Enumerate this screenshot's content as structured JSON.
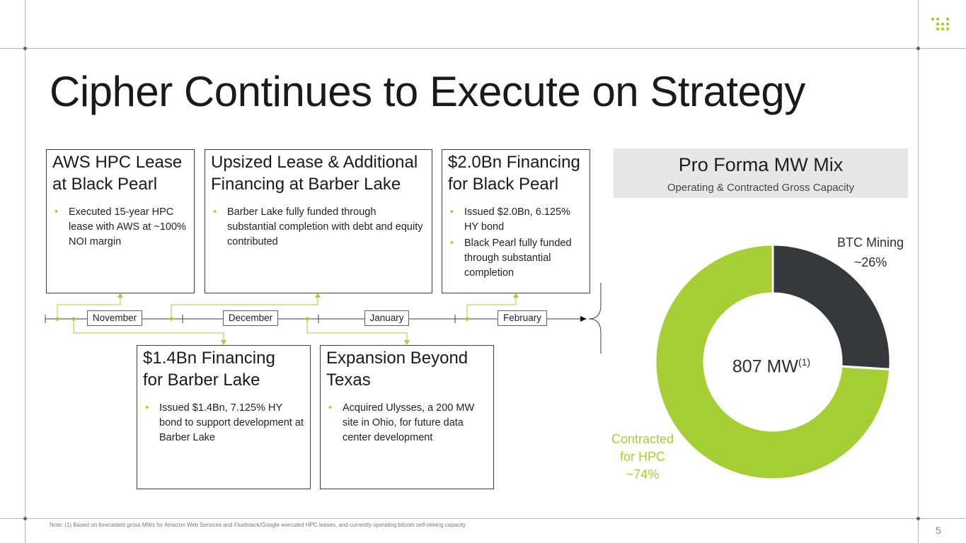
{
  "title": "Cipher Continues to Execute on Strategy",
  "cards_top": [
    {
      "title_l1": "AWS HPC Lease",
      "title_l2": "at Black Pearl",
      "bullets": [
        "Executed 15-year HPC lease with AWS at ~100% NOI margin"
      ]
    },
    {
      "title_l1": "Upsized Lease & Additional",
      "title_l2": "Financing at Barber Lake",
      "bullets": [
        "Barber Lake fully funded through substantial completion with debt and equity contributed"
      ]
    },
    {
      "title_l1": "$2.0Bn Financing",
      "title_l2": "for Black Pearl",
      "bullets": [
        "Issued $2.0Bn, 6.125% HY bond",
        "Black Pearl fully funded through substantial completion"
      ]
    }
  ],
  "cards_bottom": [
    {
      "title_l1": "$1.4Bn Financing",
      "title_l2": "for Barber Lake",
      "bullets": [
        "Issued $1.4Bn, 7.125% HY bond to support development at Barber Lake"
      ]
    },
    {
      "title_l1": "Expansion Beyond",
      "title_l2": "Texas",
      "bullets": [
        "Acquired Ulysses, a 200 MW site in Ohio, for future data center development"
      ]
    }
  ],
  "timeline": {
    "months": [
      "November",
      "December",
      "January",
      "February"
    ]
  },
  "mw_mix": {
    "title": "Pro Forma MW Mix",
    "subtitle": "Operating & Contracted Gross Capacity",
    "center_value": "807 MW",
    "center_sup": "(1)",
    "btc_label": "BTC Mining",
    "btc_pct": "~26%",
    "hpc_label_l1": "Contracted",
    "hpc_label_l2": "for HPC",
    "hpc_pct": "~74%"
  },
  "chart_data": {
    "type": "pie",
    "title": "Pro Forma MW Mix",
    "subtitle": "Operating & Contracted Gross Capacity",
    "center_label": "807 MW(1)",
    "categories": [
      "BTC Mining",
      "Contracted for HPC"
    ],
    "values": [
      26,
      74
    ],
    "colors": [
      "#35393e",
      "#a6cf37"
    ]
  },
  "colors": {
    "accent_green": "#a6cf37",
    "dark": "#35393e",
    "rule_gray": "#b9bcbf"
  },
  "logo_icon": "dot-grid-logo-icon",
  "footnote": "Note: (1) Based on forecasted gross MWs for Amazon Web Services and Fluidstack/Google executed HPC leases, and currently operating bitcoin self-mining capacity",
  "page_number": "5"
}
